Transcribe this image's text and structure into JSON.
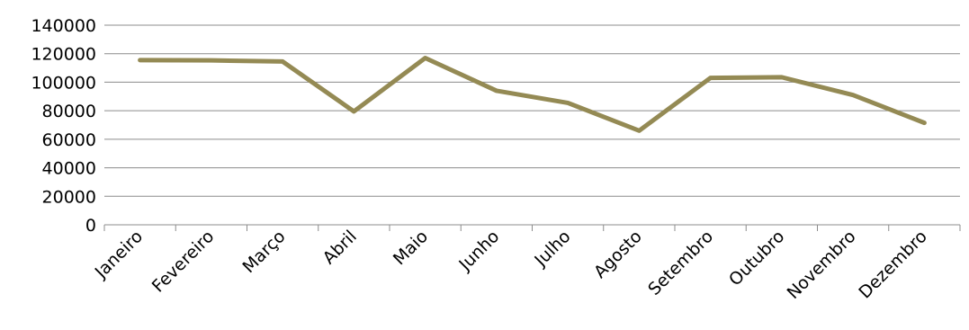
{
  "chart_data": {
    "type": "line",
    "title": "",
    "xlabel": "",
    "ylabel": "",
    "categories": [
      "Janeiro",
      "Fevereiro",
      "Março",
      "Abril",
      "Maio",
      "Junho",
      "Julho",
      "Agosto",
      "Setembro",
      "Outubro",
      "Novembro",
      "Dezembro"
    ],
    "series": [
      {
        "values": [
          115500,
          115300,
          114500,
          79500,
          117000,
          94000,
          85500,
          66000,
          103000,
          103500,
          91000,
          71500
        ],
        "color": "#948a54"
      }
    ],
    "y_ticks": [
      "0",
      "20000",
      "40000",
      "60000",
      "80000",
      "100000",
      "120000",
      "140000"
    ],
    "ylim": [
      0,
      140000
    ],
    "grid": true,
    "legend": "none"
  }
}
